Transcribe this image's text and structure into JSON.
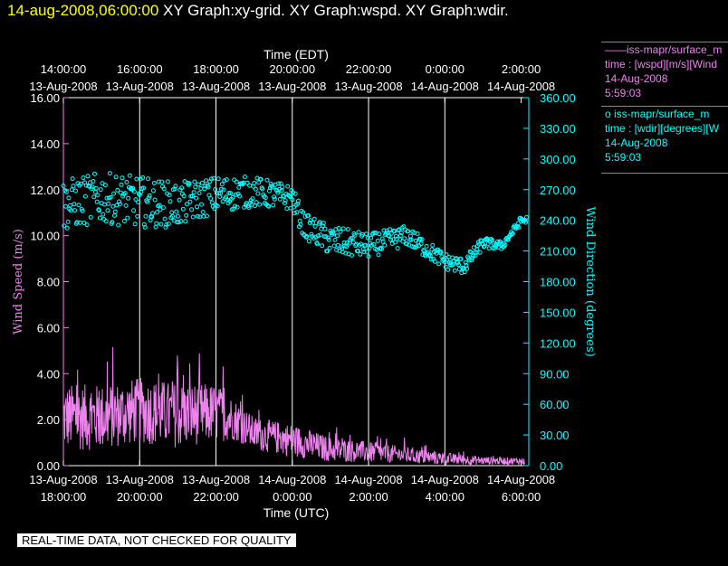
{
  "header": {
    "timestamp": "14-aug-2008,06:00:00",
    "graphs": "XY Graph:xy-grid.  XY Graph:wspd.  XY Graph:wdir."
  },
  "legend": {
    "wspd": {
      "line1": "——iss-mapr/surface_m",
      "line2": "time : [wspd][m/s][Wind",
      "line3": "14-Aug-2008",
      "line4": "5:59:03"
    },
    "wdir": {
      "line1": "o  iss-mapr/surface_m",
      "line2": "time : [wdir][degrees][W",
      "line3": "14-Aug-2008",
      "line4": "5:59:03"
    }
  },
  "footer": {
    "quality_note": "REAL-TIME DATA, NOT CHECKED FOR QUALITY"
  },
  "colors": {
    "wspd": "#ee82ee",
    "wdir": "#00ffff",
    "grid": "#ffffff",
    "timestamp": "#ffff00"
  },
  "chart_data": {
    "type": "line",
    "title_top": "Time (EDT)",
    "title_bottom": "Time (UTC)",
    "ylabel_left": "Wind Speed (m/s)",
    "ylabel_right": "Wind Direction (degrees)",
    "ylim_left": [
      0,
      16
    ],
    "ylim_right": [
      0,
      360
    ],
    "xlim_hours_utc": [
      18,
      30.2
    ],
    "left_ticks": [
      "0.00",
      "2.00",
      "4.00",
      "6.00",
      "8.00",
      "10.00",
      "12.00",
      "14.00",
      "16.00"
    ],
    "right_ticks": [
      "0.00",
      "30.00",
      "60.00",
      "90.00",
      "120.00",
      "150.00",
      "180.00",
      "210.00",
      "240.00",
      "270.00",
      "300.00",
      "330.00",
      "360.00"
    ],
    "top_ticks": [
      {
        "time": "14:00:00",
        "date": "13-Aug-2008",
        "utc_hour": 18
      },
      {
        "time": "16:00:00",
        "date": "13-Aug-2008",
        "utc_hour": 20
      },
      {
        "time": "18:00:00",
        "date": "13-Aug-2008",
        "utc_hour": 22
      },
      {
        "time": "20:00:00",
        "date": "13-Aug-2008",
        "utc_hour": 24
      },
      {
        "time": "22:00:00",
        "date": "13-Aug-2008",
        "utc_hour": 26
      },
      {
        "time": "0:00:00",
        "date": "14-Aug-2008",
        "utc_hour": 28
      },
      {
        "time": "2:00:00",
        "date": "14-Aug-2008",
        "utc_hour": 30
      }
    ],
    "bottom_ticks": [
      {
        "date": "13-Aug-2008",
        "time": "18:00:00",
        "utc_hour": 18
      },
      {
        "date": "13-Aug-2008",
        "time": "20:00:00",
        "utc_hour": 20
      },
      {
        "date": "13-Aug-2008",
        "time": "22:00:00",
        "utc_hour": 22
      },
      {
        "date": "14-Aug-2008",
        "time": "0:00:00",
        "utc_hour": 24
      },
      {
        "date": "14-Aug-2008",
        "time": "2:00:00",
        "utc_hour": 26
      },
      {
        "date": "14-Aug-2008",
        "time": "4:00:00",
        "utc_hour": 28
      },
      {
        "date": "14-Aug-2008",
        "time": "6:00:00",
        "utc_hour": 30
      }
    ],
    "series": [
      {
        "name": "wspd",
        "kind": "line",
        "axis": "left",
        "profile_hours": [
          18,
          19,
          20,
          21,
          22,
          22.5,
          23,
          24,
          25,
          26,
          27,
          28,
          29,
          30
        ],
        "profile_mean": [
          2.1,
          2.1,
          2.4,
          2.2,
          2.3,
          2.0,
          1.4,
          1.1,
          0.7,
          0.6,
          0.45,
          0.3,
          0.22,
          0.2
        ],
        "profile_spread": [
          0.8,
          0.8,
          0.8,
          0.8,
          0.7,
          0.5,
          0.4,
          0.4,
          0.3,
          0.25,
          0.2,
          0.15,
          0.1,
          0.08
        ]
      },
      {
        "name": "wdir",
        "kind": "scatter",
        "axis": "right",
        "profile_hours": [
          18,
          19,
          20,
          21,
          22,
          23,
          24,
          24.3,
          25,
          26,
          27,
          28,
          28.5,
          29,
          29.5,
          30
        ],
        "profile_mean": [
          255,
          262,
          258,
          255,
          265,
          268,
          262,
          235,
          220,
          215,
          225,
          200,
          195,
          218,
          215,
          240
        ],
        "profile_spread": [
          25,
          25,
          25,
          22,
          18,
          15,
          12,
          12,
          15,
          12,
          10,
          8,
          8,
          6,
          4,
          4
        ]
      }
    ]
  }
}
